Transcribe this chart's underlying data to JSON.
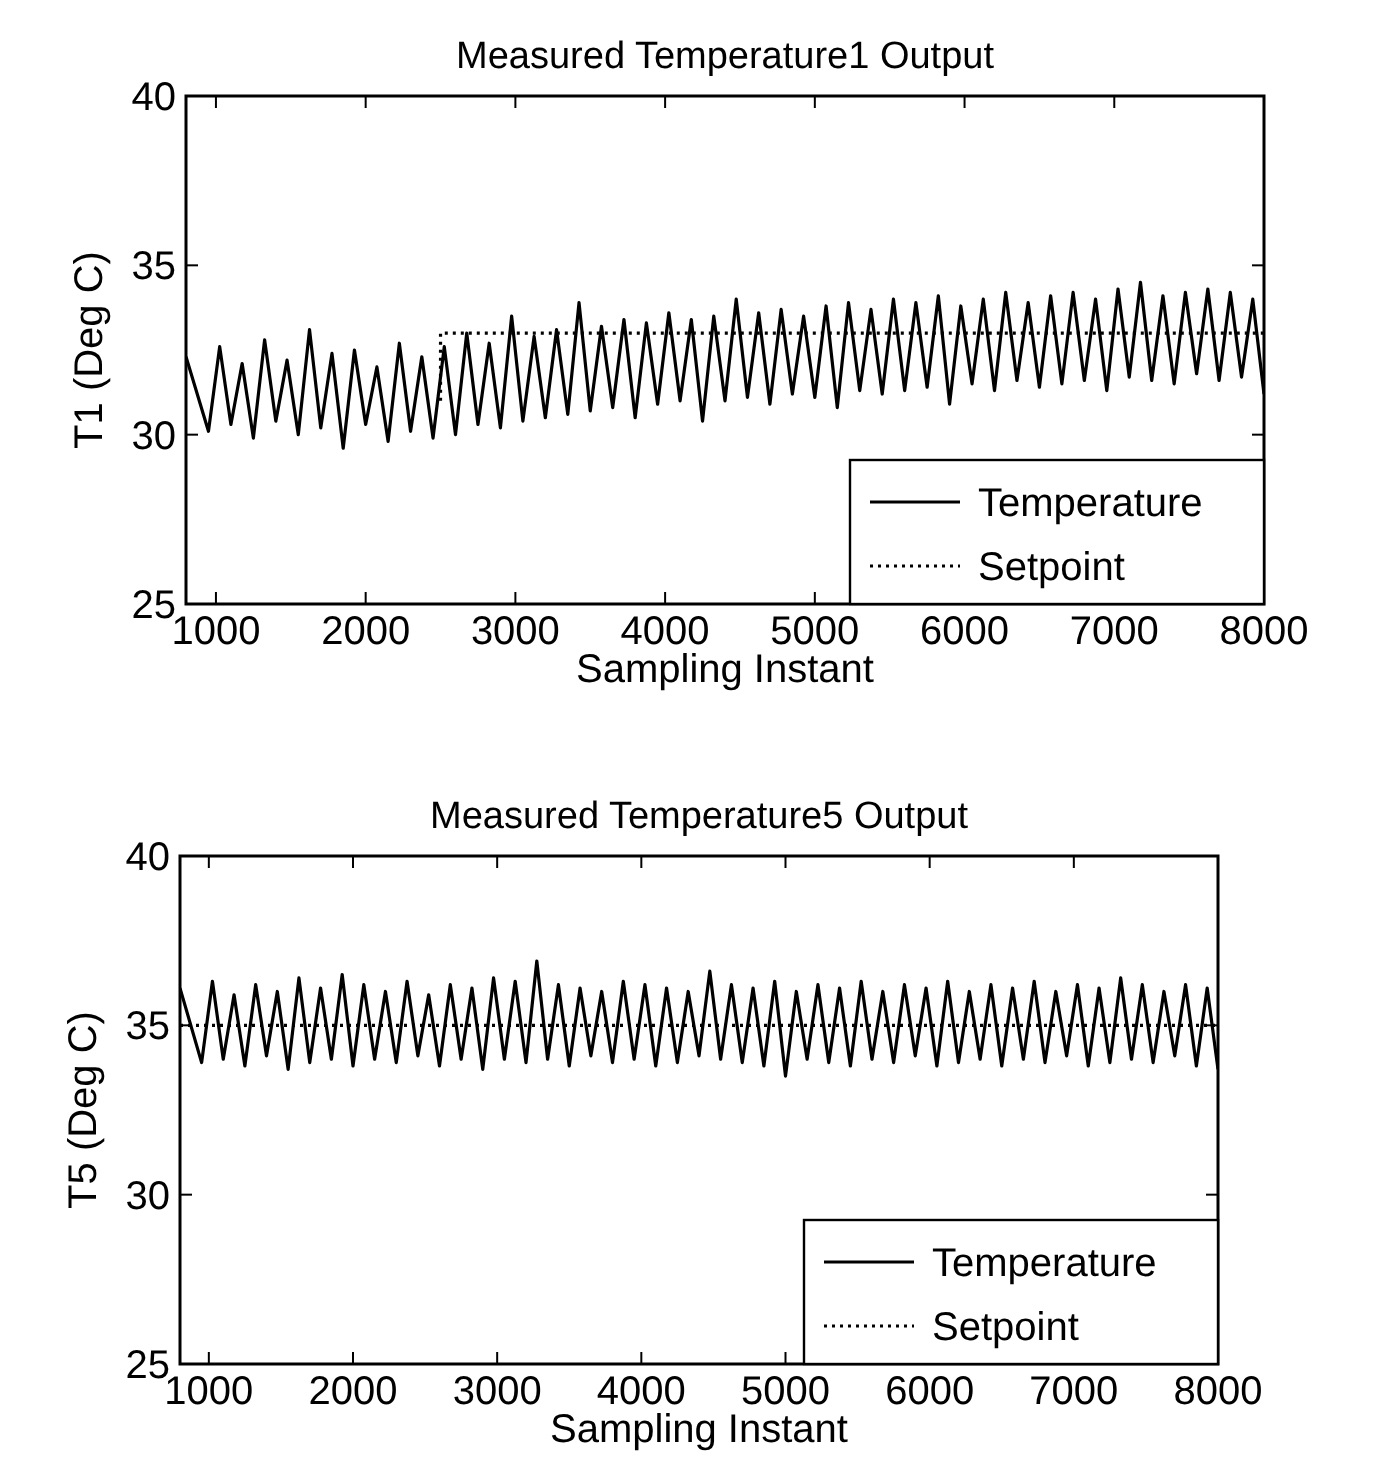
{
  "chart_data": [
    {
      "type": "line",
      "title": "Measured Temperature1 Output",
      "xlabel": "Sampling Instant",
      "ylabel": "T1 (Deg C)",
      "xlim": [
        800,
        8000
      ],
      "ylim": [
        25,
        40
      ],
      "xticks": [
        1000,
        2000,
        3000,
        4000,
        5000,
        6000,
        7000,
        8000
      ],
      "yticks": [
        25,
        30,
        35,
        40
      ],
      "grid": false,
      "legend": "bottom right",
      "marker": "none",
      "series": [
        {
          "name": "Temperature",
          "color": "#000000",
          "line_style": "solid",
          "x": [
            800,
            950,
            1025,
            1100,
            1175,
            1250,
            1325,
            1400,
            1475,
            1550,
            1625,
            1700,
            1775,
            1850,
            1925,
            2000,
            2075,
            2150,
            2225,
            2300,
            2375,
            2450,
            2525,
            2600,
            2675,
            2750,
            2825,
            2900,
            2975,
            3050,
            3125,
            3200,
            3275,
            3350,
            3425,
            3500,
            3575,
            3650,
            3725,
            3800,
            3875,
            3950,
            4025,
            4100,
            4175,
            4250,
            4325,
            4400,
            4475,
            4550,
            4625,
            4700,
            4775,
            4850,
            4925,
            5000,
            5075,
            5150,
            5225,
            5300,
            5375,
            5450,
            5525,
            5600,
            5675,
            5750,
            5825,
            5900,
            5975,
            6050,
            6125,
            6200,
            6275,
            6350,
            6425,
            6500,
            6575,
            6650,
            6725,
            6800,
            6875,
            6950,
            7025,
            7100,
            7175,
            7250,
            7325,
            7400,
            7475,
            7550,
            7625,
            7700,
            7775,
            7850,
            7925,
            8000
          ],
          "values": [
            32.3,
            30.1,
            32.6,
            30.3,
            32.1,
            29.9,
            32.8,
            30.4,
            32.2,
            30.0,
            33.1,
            30.2,
            32.4,
            29.6,
            32.5,
            30.3,
            32.0,
            29.8,
            32.7,
            30.1,
            32.3,
            29.9,
            32.6,
            30.0,
            33.0,
            30.3,
            32.7,
            30.2,
            33.5,
            30.4,
            32.9,
            30.5,
            33.1,
            30.6,
            33.9,
            30.7,
            33.2,
            30.8,
            33.4,
            30.5,
            33.3,
            30.9,
            33.6,
            31.0,
            33.4,
            30.4,
            33.5,
            31.0,
            34.0,
            31.1,
            33.6,
            30.9,
            33.7,
            31.2,
            33.5,
            31.1,
            33.8,
            30.8,
            33.9,
            31.3,
            33.7,
            31.2,
            34.0,
            31.3,
            33.9,
            31.4,
            34.1,
            30.9,
            33.8,
            31.5,
            34.0,
            31.3,
            34.2,
            31.6,
            33.9,
            31.4,
            34.1,
            31.5,
            34.2,
            31.6,
            34.0,
            31.3,
            34.3,
            31.7,
            34.5,
            31.6,
            34.1,
            31.5,
            34.2,
            31.8,
            34.3,
            31.6,
            34.2,
            31.7,
            34.0,
            31.2
          ]
        },
        {
          "name": "Setpoint",
          "color": "#000000",
          "line_style": "dotted",
          "x": [
            2500,
            2500,
            8000
          ],
          "values": [
            31,
            33,
            33
          ]
        }
      ]
    },
    {
      "type": "line",
      "title": "Measured Temperature5 Output",
      "xlabel": "Sampling Instant",
      "ylabel": "T5 (Deg C)",
      "xlim": [
        800,
        8000
      ],
      "ylim": [
        25,
        40
      ],
      "xticks": [
        1000,
        2000,
        3000,
        4000,
        5000,
        6000,
        7000,
        8000
      ],
      "yticks": [
        25,
        30,
        35,
        40
      ],
      "grid": false,
      "legend": "bottom right",
      "marker": "none",
      "series": [
        {
          "name": "Temperature",
          "color": "#000000",
          "line_style": "solid",
          "x": [
            800,
            950,
            1025,
            1100,
            1175,
            1250,
            1325,
            1400,
            1475,
            1550,
            1625,
            1700,
            1775,
            1850,
            1925,
            2000,
            2075,
            2150,
            2225,
            2300,
            2375,
            2450,
            2525,
            2600,
            2675,
            2750,
            2825,
            2900,
            2975,
            3050,
            3125,
            3200,
            3275,
            3350,
            3425,
            3500,
            3575,
            3650,
            3725,
            3800,
            3875,
            3950,
            4025,
            4100,
            4175,
            4250,
            4325,
            4400,
            4475,
            4550,
            4625,
            4700,
            4775,
            4850,
            4925,
            5000,
            5075,
            5150,
            5225,
            5300,
            5375,
            5450,
            5525,
            5600,
            5675,
            5750,
            5825,
            5900,
            5975,
            6050,
            6125,
            6200,
            6275,
            6350,
            6425,
            6500,
            6575,
            6650,
            6725,
            6800,
            6875,
            6950,
            7025,
            7100,
            7175,
            7250,
            7325,
            7400,
            7475,
            7550,
            7625,
            7700,
            7775,
            7850,
            7925,
            8000
          ],
          "values": [
            36.1,
            33.9,
            36.3,
            34.0,
            35.9,
            33.8,
            36.2,
            34.1,
            36.0,
            33.7,
            36.4,
            33.9,
            36.1,
            34.0,
            36.5,
            33.8,
            36.2,
            34.0,
            36.0,
            33.9,
            36.3,
            34.1,
            35.9,
            33.8,
            36.2,
            34.0,
            36.1,
            33.7,
            36.4,
            34.0,
            36.3,
            33.9,
            36.9,
            34.0,
            36.2,
            33.8,
            36.1,
            34.1,
            36.0,
            33.9,
            36.3,
            34.0,
            36.2,
            33.8,
            36.1,
            33.9,
            36.0,
            34.1,
            36.6,
            34.0,
            36.2,
            33.9,
            36.1,
            33.8,
            36.3,
            33.5,
            36.0,
            34.0,
            36.2,
            33.9,
            36.1,
            33.8,
            36.3,
            34.0,
            36.0,
            33.9,
            36.2,
            34.1,
            36.1,
            33.8,
            36.3,
            33.9,
            36.0,
            34.0,
            36.2,
            33.8,
            36.1,
            34.0,
            36.3,
            33.9,
            36.0,
            34.1,
            36.2,
            33.8,
            36.1,
            33.9,
            36.4,
            34.0,
            36.2,
            33.9,
            36.0,
            34.1,
            36.2,
            33.8,
            36.1,
            33.7
          ]
        },
        {
          "name": "Setpoint",
          "color": "#000000",
          "line_style": "dotted",
          "x": [
            800,
            8000
          ],
          "values": [
            35,
            35
          ]
        }
      ]
    }
  ]
}
